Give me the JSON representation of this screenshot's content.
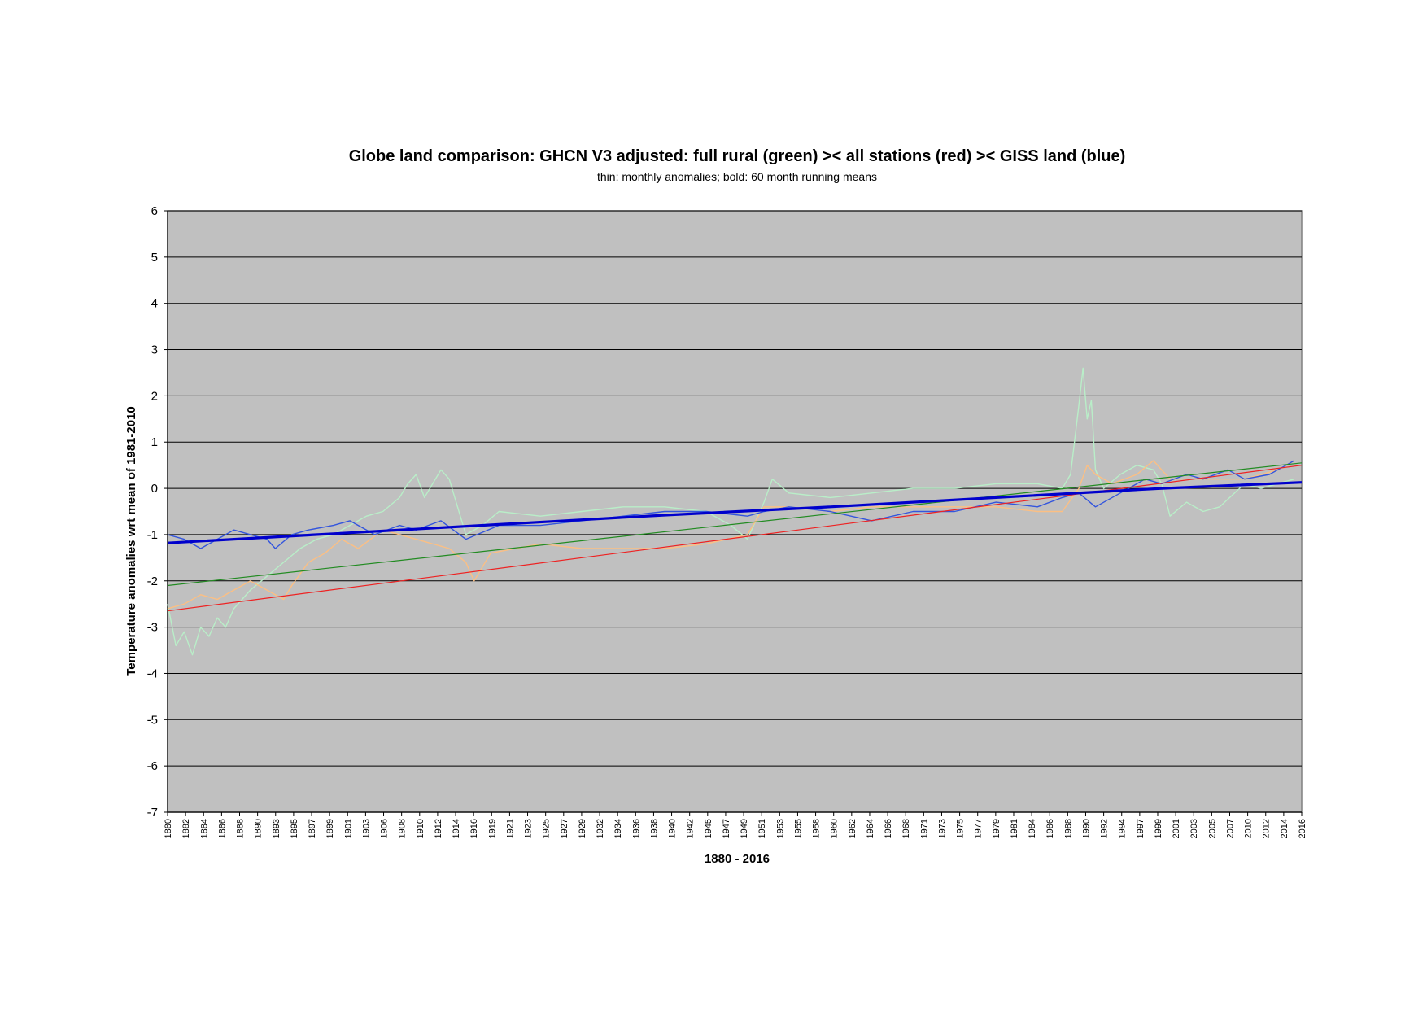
{
  "chart_data": {
    "type": "line",
    "title": "Globe land comparison: GHCN V3 adjusted: full rural (green) >< all stations (red) >< GISS land (blue)",
    "subtitle": "thin: monthly anomalies; bold: 60 month running means",
    "xlabel": "1880 - 2016",
    "ylabel": "Temperature anomalies wrt mean of 1981-2010",
    "xlim": [
      1880,
      2016.9
    ],
    "ylim": [
      -7,
      6
    ],
    "yticks": [
      6,
      5,
      4,
      3,
      2,
      1,
      0,
      -1,
      -2,
      -3,
      -4,
      -5,
      -6,
      -7
    ],
    "xtick_labels": [
      "1880",
      "1882",
      "1884",
      "1886",
      "1888",
      "1890",
      "1893",
      "1895",
      "1897",
      "1899",
      "1901",
      "1903",
      "1906",
      "1908",
      "1910",
      "1912",
      "1914",
      "1916",
      "1919",
      "1921",
      "1923",
      "1925",
      "1927",
      "1929",
      "1932",
      "1934",
      "1936",
      "1938",
      "1940",
      "1942",
      "1945",
      "1947",
      "1949",
      "1951",
      "1953",
      "1955",
      "1958",
      "1960",
      "1962",
      "1964",
      "1966",
      "1968",
      "1971",
      "1973",
      "1975",
      "1977",
      "1979",
      "1981",
      "1984",
      "1986",
      "1988",
      "1990",
      "1992",
      "1994",
      "1997",
      "1999",
      "2001",
      "2003",
      "2005",
      "2007",
      "2010",
      "2012",
      "2014",
      "2016"
    ],
    "grid": true,
    "background": "#c0c0c0",
    "series": [
      {
        "name": "full rural (green)",
        "style": "thin",
        "color": "#b8f0c8",
        "x": [
          1880.0,
          1881.0,
          1882.0,
          1883.0,
          1884.0,
          1885.0,
          1886.0,
          1887.0,
          1888.0,
          1889.0,
          1890.0,
          1892.0,
          1894.0,
          1896.0,
          1898.0,
          1900.0,
          1902.0,
          1904.0,
          1906.0,
          1908.0,
          1909.0,
          1910.0,
          1911.0,
          1912.0,
          1913.0,
          1914.0,
          1916.0,
          1918.0,
          1920.0,
          1925.0,
          1930.0,
          1935.0,
          1940.0,
          1945.0,
          1948.0,
          1950.0,
          1952.0,
          1953.0,
          1955.0,
          1960.0,
          1965.0,
          1970.0,
          1975.0,
          1980.0,
          1985.0,
          1988.0,
          1989.0,
          1990.0,
          1990.5,
          1991.0,
          1991.5,
          1992.0,
          1993.0,
          1995.0,
          1997.0,
          1999.0,
          2000.0,
          2001.0,
          2003.0,
          2005.0,
          2007.0,
          2010.0,
          2012.0,
          2014.0,
          2016.0
        ],
        "y": [
          -2.5,
          -3.4,
          -3.1,
          -3.6,
          -3.0,
          -3.2,
          -2.8,
          -3.0,
          -2.6,
          -2.4,
          -2.2,
          -1.9,
          -1.6,
          -1.3,
          -1.1,
          -1.0,
          -0.8,
          -0.6,
          -0.5,
          -0.2,
          0.1,
          0.3,
          -0.2,
          0.1,
          0.4,
          0.2,
          -1.0,
          -0.8,
          -0.5,
          -0.6,
          -0.5,
          -0.4,
          -0.4,
          -0.5,
          -0.8,
          -1.1,
          -0.3,
          0.2,
          -0.1,
          -0.2,
          -0.1,
          0.0,
          0.0,
          0.1,
          0.1,
          0.0,
          0.3,
          1.8,
          2.6,
          1.5,
          1.9,
          0.4,
          0.0,
          0.3,
          0.5,
          0.4,
          0.1,
          -0.6,
          -0.3,
          -0.5,
          -0.4,
          0.1,
          0.0,
          0.1,
          0.2
        ]
      },
      {
        "name": "all stations (red)",
        "style": "thin",
        "color": "#ffbf80",
        "x": [
          1880.0,
          1882.0,
          1884.0,
          1886.0,
          1888.0,
          1890.0,
          1892.0,
          1894.0,
          1895.0,
          1897.0,
          1899.0,
          1901.0,
          1903.0,
          1906.0,
          1910.0,
          1914.0,
          1916.0,
          1917.0,
          1919.0,
          1925.0,
          1930.0,
          1935.0,
          1940.0,
          1945.0,
          1950.0,
          1952.0,
          1955.0,
          1960.0,
          1965.0,
          1970.0,
          1975.0,
          1980.0,
          1985.0,
          1988.0,
          1990.0,
          1991.0,
          1992.0,
          1994.0,
          1997.0,
          1999.0,
          2001.0,
          2005.0,
          2010.0,
          2014.0,
          2016.0
        ],
        "y": [
          -2.6,
          -2.5,
          -2.3,
          -2.4,
          -2.2,
          -2.0,
          -2.2,
          -2.4,
          -2.1,
          -1.6,
          -1.4,
          -1.1,
          -1.3,
          -0.9,
          -1.1,
          -1.3,
          -1.6,
          -2.0,
          -1.4,
          -1.2,
          -1.3,
          -1.3,
          -1.3,
          -1.2,
          -1.0,
          -0.4,
          -0.4,
          -0.5,
          -0.4,
          -0.4,
          -0.4,
          -0.4,
          -0.5,
          -0.5,
          0.0,
          0.5,
          0.3,
          0.1,
          0.3,
          0.6,
          0.2,
          0.2,
          0.2,
          0.4,
          0.6
        ]
      },
      {
        "name": "GISS land (blue)",
        "style": "thin",
        "color": "#3355dd",
        "x": [
          1880.0,
          1882.0,
          1884.0,
          1886.0,
          1888.0,
          1890.0,
          1892.0,
          1893.0,
          1895.0,
          1897.0,
          1900.0,
          1902.0,
          1905.0,
          1908.0,
          1910.0,
          1913.0,
          1916.0,
          1920.0,
          1925.0,
          1930.0,
          1935.0,
          1940.0,
          1945.0,
          1950.0,
          1952.0,
          1955.0,
          1960.0,
          1965.0,
          1970.0,
          1975.0,
          1980.0,
          1985.0,
          1988.0,
          1990.0,
          1992.0,
          1995.0,
          1998.0,
          2000.0,
          2003.0,
          2005.0,
          2008.0,
          2010.0,
          2013.0,
          2015.0,
          2016.0
        ],
        "y": [
          -1.0,
          -1.1,
          -1.3,
          -1.1,
          -0.9,
          -1.0,
          -1.1,
          -1.3,
          -1.0,
          -0.9,
          -0.8,
          -0.7,
          -1.0,
          -0.8,
          -0.9,
          -0.7,
          -1.1,
          -0.8,
          -0.8,
          -0.7,
          -0.6,
          -0.5,
          -0.5,
          -0.6,
          -0.5,
          -0.4,
          -0.5,
          -0.7,
          -0.5,
          -0.5,
          -0.3,
          -0.4,
          -0.2,
          -0.1,
          -0.4,
          -0.1,
          0.2,
          0.1,
          0.3,
          0.2,
          0.4,
          0.2,
          0.3,
          0.5,
          0.6
        ]
      },
      {
        "name": "full rural (green)",
        "style": "trend",
        "color": "#228b22",
        "x": [
          1880.0,
          2016.9
        ],
        "y": [
          -2.1,
          0.55
        ]
      },
      {
        "name": "all stations (red)",
        "style": "trend",
        "color": "#ee2222",
        "x": [
          1880.0,
          2016.9
        ],
        "y": [
          -2.65,
          0.5
        ]
      },
      {
        "name": "GISS land (blue)",
        "style": "bold",
        "color": "#0000cc",
        "x": [
          1880.0,
          1900.0,
          1920.0,
          1940.0,
          1960.0,
          1980.0,
          2000.0,
          2016.9
        ],
        "y": [
          -1.18,
          -0.98,
          -0.78,
          -0.58,
          -0.4,
          -0.2,
          0.0,
          0.13
        ]
      }
    ]
  }
}
